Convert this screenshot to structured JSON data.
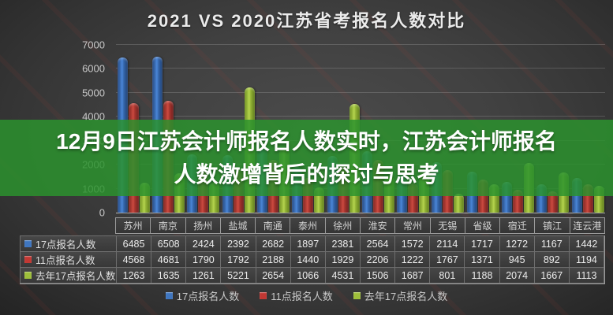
{
  "title": "2021 VS 2020江苏省考报名人数对比",
  "overlay": {
    "line1": "12月9日江苏会计师报名人数实时，江苏会计师报名",
    "line2": "人数激增背后的探讨与思考",
    "bg_color": "#2b932d",
    "text_color": "#ffffff"
  },
  "chart_data": {
    "type": "bar",
    "title": "2021 VS 2020江苏省考报名人数对比",
    "categories": [
      "苏州",
      "南京",
      "扬州",
      "盐城",
      "南通",
      "泰州",
      "徐州",
      "淮安",
      "常州",
      "无锡",
      "省级",
      "宿迁",
      "镇江",
      "连云港"
    ],
    "series": [
      {
        "name": "17点报名人数",
        "color": "#3f76c0",
        "values": [
          6485,
          6508,
          2424,
          2392,
          2682,
          1897,
          2381,
          2564,
          1572,
          2114,
          1717,
          1272,
          1167,
          1442
        ]
      },
      {
        "name": "11点报名人数",
        "color": "#c23833",
        "values": [
          4568,
          4681,
          1790,
          1792,
          2188,
          1440,
          1929,
          2206,
          1222,
          1767,
          1371,
          945,
          892,
          1194
        ]
      },
      {
        "name": "去年17点报名人数",
        "color": "#9ebe3a",
        "values": [
          1263,
          1635,
          1261,
          5221,
          2654,
          1066,
          4531,
          1506,
          1687,
          801,
          1188,
          2074,
          1667,
          1113
        ]
      }
    ],
    "xlabel": "",
    "ylabel": "",
    "ylim": [
      0,
      7000
    ],
    "yticks": [
      0,
      1000,
      2000,
      3000,
      4000,
      5000,
      6000,
      7000
    ],
    "grid": true,
    "legend_position": "bottom",
    "table_shown": true
  }
}
